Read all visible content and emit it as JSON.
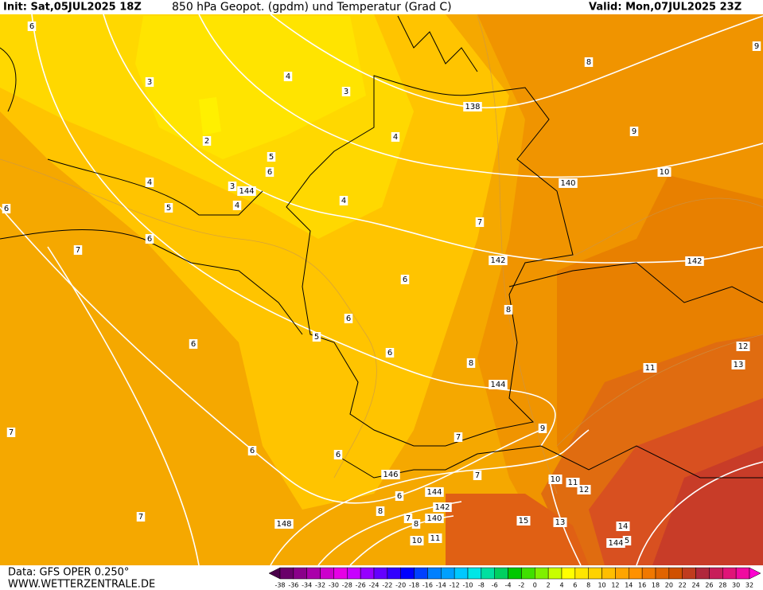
{
  "header": {
    "init": "Init: Sat,05JUL2025 18Z",
    "title": "850 hPa Geopot. (gpdm) und Temperatur (Grad C)",
    "valid": "Valid: Mon,07JUL2025 23Z"
  },
  "footer": {
    "source": "Data: GFS OPER 0.250°",
    "site": "WWW.WETTERZENTRALE.DE"
  },
  "map_labels": [
    "6",
    "3",
    "4",
    "3",
    "8",
    "9",
    "138",
    "2",
    "4",
    "9",
    "5",
    "6",
    "4",
    "3",
    "144",
    "10",
    "140",
    "5",
    "4",
    "4",
    "6",
    "7",
    "6",
    "7",
    "142",
    "142",
    "6",
    "8",
    "6",
    "5",
    "6",
    "12",
    "6",
    "11",
    "13",
    "8",
    "144",
    "7",
    "9",
    "7",
    "6",
    "6",
    "146",
    "7",
    "10",
    "11",
    "12",
    "144",
    "6",
    "142",
    "8",
    "7",
    "140",
    "7",
    "8",
    "148",
    "15",
    "13",
    "14",
    "10",
    "11",
    "144",
    "5"
  ],
  "colorbar": {
    "ticks": [
      -38,
      -36,
      -34,
      -32,
      -30,
      -28,
      -26,
      -24,
      -22,
      -20,
      -18,
      -16,
      -14,
      -12,
      -10,
      -8,
      -6,
      -4,
      -2,
      0,
      2,
      4,
      6,
      8,
      10,
      12,
      14,
      16,
      18,
      20,
      22,
      24,
      26,
      28,
      30,
      32
    ],
    "colors": [
      "#4a004a",
      "#6a006a",
      "#8a008a",
      "#aa00aa",
      "#cc00cc",
      "#e600e6",
      "#c800ff",
      "#9600ff",
      "#6400ff",
      "#3200ff",
      "#0000ff",
      "#0040ff",
      "#0080ff",
      "#00a0ff",
      "#00c8ff",
      "#00e6e6",
      "#00e0a0",
      "#00d060",
      "#00c800",
      "#40e000",
      "#80f000",
      "#c8ff00",
      "#ffff00",
      "#ffe600",
      "#ffd200",
      "#ffbe00",
      "#ffa500",
      "#ff9100",
      "#f07800",
      "#e06400",
      "#d05000",
      "#c03c1e",
      "#b0283c",
      "#c81e5a",
      "#e01478",
      "#f00aa0",
      "#ff00d0"
    ]
  }
}
